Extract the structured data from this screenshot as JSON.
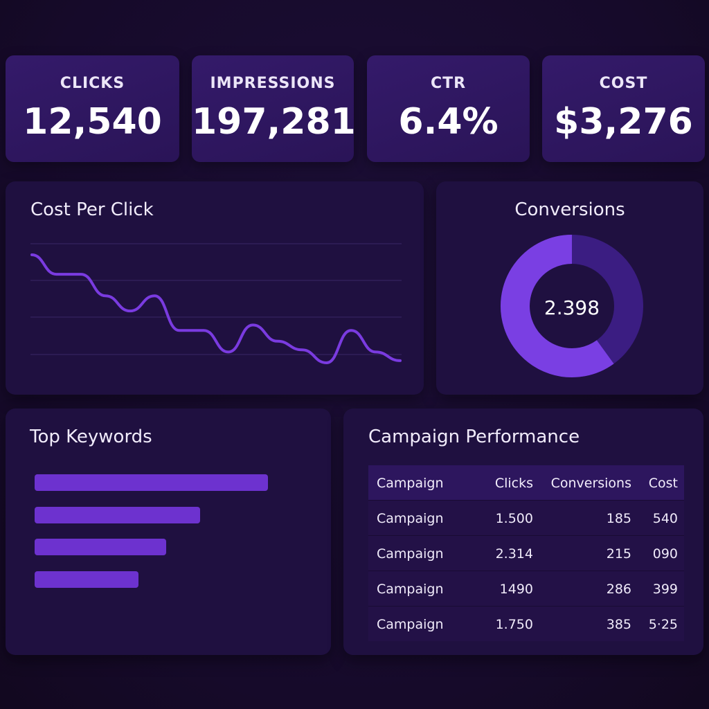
{
  "kpis": [
    {
      "label": "CLICKS",
      "value": "12,540"
    },
    {
      "label": "IMPRESSIONS",
      "value": "197,281"
    },
    {
      "label": "CTR",
      "value": "6.4%"
    },
    {
      "label": "COST",
      "value": "$3,276"
    }
  ],
  "cpc": {
    "title": "Cost Per Click"
  },
  "conversions": {
    "title": "Conversions",
    "center_value": "2.398",
    "fill_fraction": 0.6
  },
  "keywords": {
    "title": "Top Keywords",
    "bars": [
      1.0,
      0.71,
      0.565,
      0.445
    ]
  },
  "campaigns": {
    "title": "Campaign Performance",
    "headers": [
      "Campaign",
      "Clicks",
      "Conversions",
      "Cost"
    ],
    "rows": [
      [
        "Campaign",
        "1.500",
        "185",
        "540"
      ],
      [
        "Campaign",
        "2.314",
        "215",
        "090"
      ],
      [
        "Campaign",
        "1490",
        "286",
        "399"
      ],
      [
        "Campaign",
        "1.750",
        "385",
        "5·25"
      ]
    ]
  },
  "colors": {
    "accent": "#7a3be0",
    "accent_dark": "#3a1d80",
    "card": "#2e1760",
    "panel": "#1f1040"
  },
  "chart_data": {
    "type": "line",
    "title": "Cost Per Click",
    "series": [
      {
        "values": [
          1.0,
          0.82,
          0.82,
          0.62,
          0.48,
          0.62,
          0.3,
          0.3,
          0.1,
          0.35,
          0.2,
          0.12,
          0.0,
          0.3,
          0.1,
          0.02
        ]
      }
    ],
    "grid": true
  }
}
